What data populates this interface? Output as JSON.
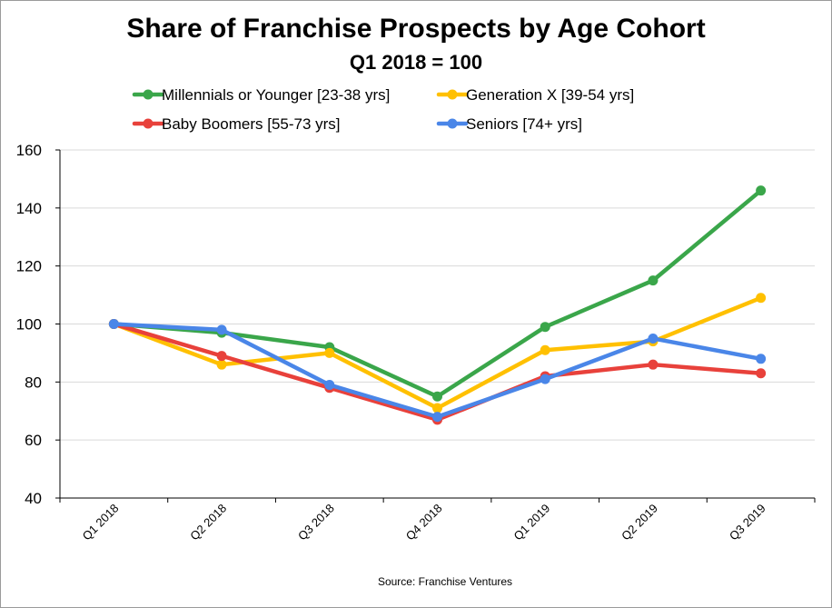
{
  "chart_data": {
    "type": "line",
    "title": "Share of Franchise Prospects by Age Cohort",
    "subtitle": "Q1 2018 = 100",
    "categories": [
      "Q1 2018",
      "Q2 2018",
      "Q3 2018",
      "Q4 2018",
      "Q1 2019",
      "Q2 2019",
      "Q3 2019"
    ],
    "ylim": [
      40,
      160
    ],
    "yticks": [
      40,
      60,
      80,
      100,
      120,
      140,
      160
    ],
    "grid": true,
    "legend_position": "top",
    "series": [
      {
        "name": "Millennials or Younger [23-38 yrs]",
        "color": "#3aa64a",
        "values": [
          100,
          97,
          92,
          75,
          99,
          115,
          146
        ]
      },
      {
        "name": "Generation X [39-54 yrs]",
        "color": "#ffc000",
        "values": [
          100,
          86,
          90,
          71,
          91,
          94,
          109
        ]
      },
      {
        "name": "Baby Boomers [55-73 yrs]",
        "color": "#e8413b",
        "values": [
          100,
          89,
          78,
          67,
          82,
          86,
          83
        ]
      },
      {
        "name": "Seniors [74+ yrs]",
        "color": "#4a86e8",
        "values": [
          100,
          98,
          79,
          68,
          81,
          95,
          88
        ]
      }
    ],
    "source": "Source: Franchise Ventures"
  }
}
